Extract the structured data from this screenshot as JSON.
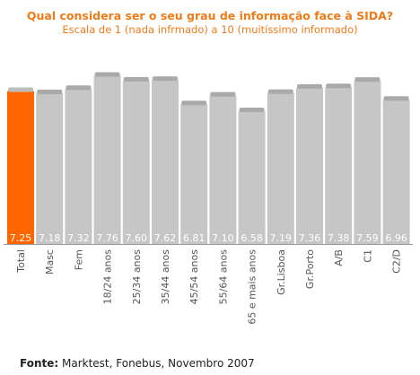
{
  "chart_data": {
    "type": "bar",
    "title": "Qual considera ser o seu grau de informação face à SIDA?",
    "subtitle": "Escala de 1 (nada infrmado) a 10 (muitíssimo informado)",
    "categories": [
      "Total",
      "Masc",
      "Fem",
      "18/24 anos",
      "25/34 anos",
      "35/44 anos",
      "45/54 anos",
      "55/64 anos",
      "65 e mais anos",
      "Gr.Lisboa",
      "Gr.Porto",
      "A/B",
      "C1",
      "C2/D"
    ],
    "values": [
      7.25,
      7.18,
      7.32,
      7.76,
      7.6,
      7.62,
      6.81,
      7.1,
      6.58,
      7.19,
      7.36,
      7.38,
      7.59,
      6.96
    ],
    "value_labels": [
      "7.25",
      "7.18",
      "7.32",
      "7.76",
      "7.60",
      "7.62",
      "6.81",
      "7.10",
      "6.58",
      "7.19",
      "7.36",
      "7.38",
      "7.59",
      "6.96"
    ],
    "highlight_index": 0,
    "colors": {
      "highlight": "#ff6600",
      "bar": "#c6c6c6",
      "bar_top": "#a9a9a9",
      "label": "#ffffff",
      "axis_text": "#555555",
      "axis": "#999999"
    },
    "grid": false,
    "legend": "none"
  },
  "source": {
    "label": "Fonte:",
    "text": " Marktest, Fonebus, Novembro 2007"
  }
}
